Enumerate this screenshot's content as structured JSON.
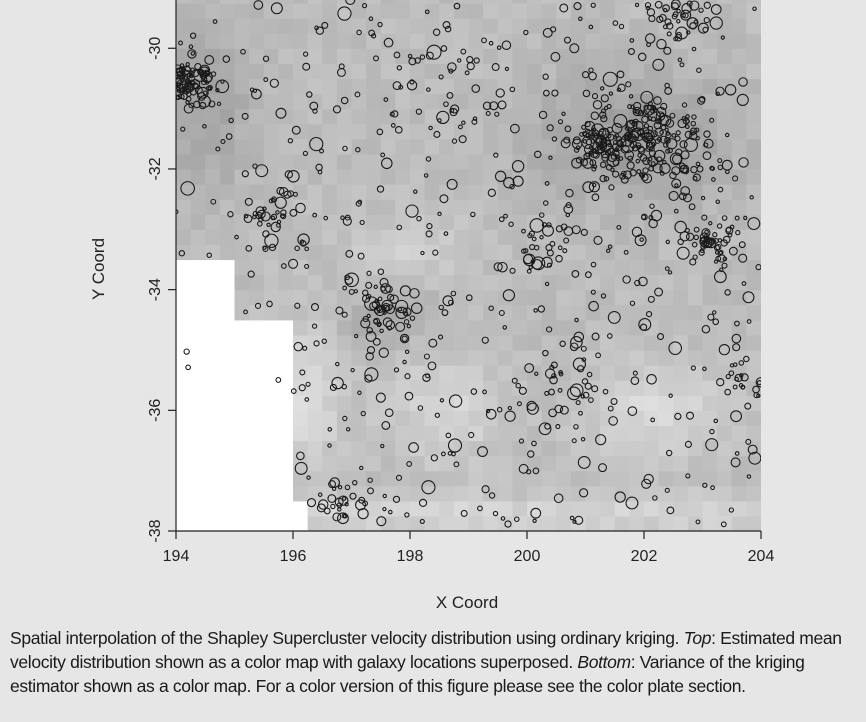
{
  "chart_data": {
    "type": "heatmap",
    "title": "",
    "xlabel": "X Coord",
    "ylabel": "Y Coord",
    "xlim": [
      194,
      204
    ],
    "ylim": [
      -38,
      -29.2
    ],
    "y_reversed": true,
    "x_ticks": [
      "194",
      "196",
      "198",
      "200",
      "202",
      "204"
    ],
    "y_ticks": [
      "-30",
      "-32",
      "-34",
      "-36",
      "-38"
    ],
    "grid": false,
    "legend": "none",
    "heatmap_cell_deg": 0.25,
    "overlay": {
      "type": "scatter",
      "marker": "open-circle",
      "description": "galaxy locations superposed",
      "clusters": [
        {
          "x": 194.2,
          "y": -30.6,
          "n": 110,
          "spread": 0.35
        },
        {
          "x": 202.1,
          "y": -31.6,
          "n": 220,
          "spread": 0.7
        },
        {
          "x": 201.2,
          "y": -31.6,
          "n": 60,
          "spread": 0.3
        },
        {
          "x": 203.2,
          "y": -33.2,
          "n": 50,
          "spread": 0.3
        },
        {
          "x": 197.5,
          "y": -34.4,
          "n": 60,
          "spread": 0.45
        },
        {
          "x": 202.7,
          "y": -29.6,
          "n": 45,
          "spread": 0.45
        },
        {
          "x": 195.6,
          "y": -32.7,
          "n": 30,
          "spread": 0.35
        },
        {
          "x": 200.3,
          "y": -33.3,
          "n": 35,
          "spread": 0.45
        },
        {
          "x": 203.7,
          "y": -35.5,
          "n": 25,
          "spread": 0.35
        },
        {
          "x": 196.8,
          "y": -37.5,
          "n": 25,
          "spread": 0.3
        },
        {
          "x": 200.5,
          "y": -35.5,
          "n": 40,
          "spread": 0.6
        },
        {
          "x": 198.5,
          "y": -30.6,
          "n": 40,
          "spread": 0.8
        }
      ],
      "background_count": 520
    }
  },
  "colors": {
    "background": "#e6e6e6",
    "axis": "#222222",
    "marker_stroke": "#1a1a1a",
    "heat_dark": "#777777",
    "heat_light": "#f6f6f6",
    "empty_region": "#ffffff"
  },
  "caption": {
    "part1": "Spatial interpolation of the Shapley Supercluster velocity distribution using ordinary kriging. ",
    "top_label": "Top",
    "part2": ": Estimated mean velocity distribution shown as a color map with galaxy locations superposed. ",
    "bottom_label": "Bottom",
    "part3": ": Variance of the kriging estimator shown as a color map. For a color version of this figure please see the color plate section."
  }
}
